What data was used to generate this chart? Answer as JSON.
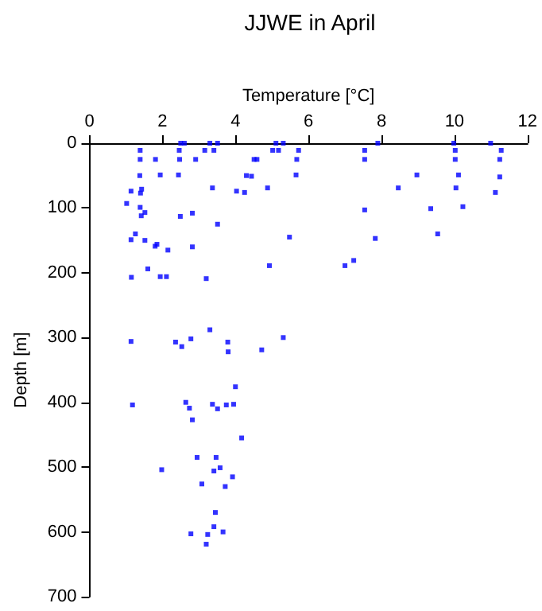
{
  "chart_data": {
    "type": "scatter",
    "title": "JJWE in April",
    "xlabel": "Temperature [°C]",
    "ylabel": "Depth [m]",
    "xlim": [
      0,
      12
    ],
    "xticks": [
      0,
      2,
      4,
      6,
      8,
      10,
      12
    ],
    "ylim": [
      700,
      0
    ],
    "yticks": [
      0,
      100,
      200,
      300,
      400,
      500,
      600,
      700
    ],
    "grid": false,
    "marker": "square",
    "series": [
      {
        "color": "#0000ff",
        "x": [
          1.39,
          1.39,
          1.38,
          1.94,
          1.14,
          1.43,
          1.4,
          1.02,
          1.39,
          1.52,
          1.42,
          1.26,
          1.14,
          1.52,
          1.8,
          1.85,
          2.15,
          1.6,
          1.15,
          1.94,
          2.11,
          1.81,
          2.46,
          2.5,
          2.6,
          2.47,
          2.44,
          2.49,
          2.82,
          2.82,
          3.2,
          2.91,
          3.16,
          3.3,
          3.41,
          3.51,
          3.37,
          3.51,
          4.03,
          4.25,
          4.3,
          4.44,
          4.51,
          4.59,
          4.88,
          5.02,
          5.18,
          5.11,
          5.31,
          4.93,
          5.48,
          5.66,
          5.68,
          5.73,
          7.0,
          7.24,
          7.54,
          7.54,
          7.54,
          7.83,
          7.9,
          8.46,
          8.97,
          9.35,
          9.54,
          9.98,
          10.02,
          10.02,
          10.11,
          10.04,
          10.23,
          10.99,
          11.28,
          11.24,
          11.24,
          11.12,
          1.14,
          2.36,
          2.53,
          2.78,
          3.3,
          3.79,
          3.8,
          4.72,
          5.31,
          4.0,
          1.18,
          2.64,
          2.74,
          3.37,
          3.51,
          3.75,
          3.95,
          2.82,
          4.17,
          2.95,
          3.47,
          1.98,
          3.58,
          3.41,
          3.92,
          3.08,
          3.72,
          3.45,
          3.41,
          2.78,
          3.24,
          3.66,
          3.2
        ],
        "values": [
          11,
          25,
          50,
          49,
          74,
          71,
          77,
          93,
          99,
          107,
          112,
          140,
          149,
          150,
          159,
          156,
          165,
          194,
          207,
          206,
          206,
          25,
          11,
          0,
          0,
          25,
          49,
          113,
          108,
          160,
          209,
          25,
          11,
          0,
          11,
          0,
          69,
          125,
          74,
          76,
          50,
          51,
          25,
          25,
          69,
          11,
          11,
          0,
          0,
          189,
          145,
          49,
          25,
          11,
          189,
          181,
          11,
          25,
          103,
          147,
          0,
          69,
          49,
          101,
          140,
          0,
          11,
          25,
          49,
          69,
          98,
          0,
          11,
          25,
          52,
          76,
          306,
          307,
          314,
          302,
          288,
          307,
          322,
          319,
          300,
          376,
          404,
          400,
          409,
          403,
          410,
          404,
          403,
          427,
          455,
          485,
          485,
          504,
          501,
          506,
          515,
          526,
          530,
          570,
          592,
          603,
          604,
          600,
          619
        ]
      }
    ]
  }
}
